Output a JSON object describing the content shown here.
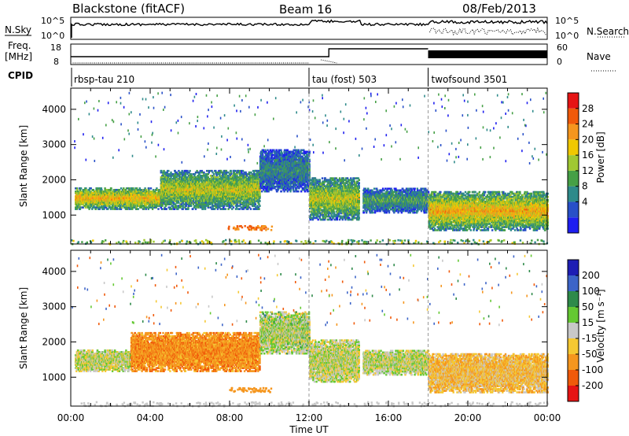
{
  "header": {
    "station": "Blackstone (fitACF)",
    "beam": "Beam 16",
    "date": "08/Feb/2013"
  },
  "noise_panel": {
    "left_label": "N.Sky",
    "left_ticks": [
      "10^5",
      "10^0"
    ],
    "right_ticks": [
      "10^5",
      "10^0"
    ],
    "right_label": "N.Search"
  },
  "freq_panel": {
    "left_label_1": "Freq.",
    "left_label_2": "[MHz]",
    "left_ticks": [
      "18",
      "8"
    ],
    "right_ticks": [
      "60",
      "0"
    ],
    "right_label": "Nave"
  },
  "cpid": {
    "label": "CPID",
    "segments": [
      {
        "name": "rbsp-tau 210",
        "start_h": 0
      },
      {
        "name": "tau (fost) 503",
        "start_h": 12
      },
      {
        "name": "twofsound 3501",
        "start_h": 18
      }
    ]
  },
  "power_panel": {
    "ylabel": "Slant Range [km]",
    "cbar_label": "Power [dB]",
    "cbar_ticks": [
      "28",
      "24",
      "20",
      "16",
      "12",
      "8",
      "4"
    ]
  },
  "velocity_panel": {
    "ylabel": "Slant Range [km]",
    "cbar_label": "Velocity [m s⁻¹]",
    "cbar_ticks": [
      "200",
      "100",
      "50",
      "15",
      "-15",
      "-50",
      "-100",
      "-200"
    ]
  },
  "colors": {
    "power": [
      "#1e1ef0",
      "#2850c8",
      "#2e8a8a",
      "#46a046",
      "#a0c832",
      "#f0c800",
      "#f5961e",
      "#f05a0a",
      "#e61414"
    ],
    "velocity": [
      "#e61414",
      "#f05a0a",
      "#f5961e",
      "#f5c832",
      "#c8c8c8",
      "#64c832",
      "#2e8a4a",
      "#3c64c8",
      "#1e1eb4"
    ]
  },
  "chart_data": [
    {
      "type": "heatmap",
      "title": "",
      "xlabel": "Time UT",
      "ylabel": "Slant Range [km]",
      "x_ticks": [
        "00:00",
        "04:00",
        "08:00",
        "12:00",
        "16:00",
        "20:00",
        "00:00"
      ],
      "y_ticks": [
        1000,
        2000,
        3000,
        4000
      ],
      "xlim_hours": [
        0,
        24
      ],
      "ylim_km": [
        180,
        4600
      ],
      "quantity": "Power [dB]",
      "clim": [
        0,
        32
      ],
      "echo_regions": [
        {
          "t0": 0.2,
          "t1": 4.5,
          "r0": 1200,
          "r1": 1800,
          "value": 22
        },
        {
          "t0": 4.5,
          "t1": 9.5,
          "r0": 1200,
          "r1": 2300,
          "value": 18
        },
        {
          "t0": 9.5,
          "t1": 12.0,
          "r0": 1700,
          "r1": 2900,
          "value": 10
        },
        {
          "t0": 12.0,
          "t1": 14.5,
          "r0": 900,
          "r1": 2100,
          "value": 18
        },
        {
          "t0": 14.7,
          "t1": 18.0,
          "r0": 1100,
          "r1": 1800,
          "value": 12
        },
        {
          "t0": 18.0,
          "t1": 24.0,
          "r0": 600,
          "r1": 1700,
          "value": 22
        }
      ]
    },
    {
      "type": "heatmap",
      "title": "",
      "xlabel": "Time UT",
      "ylabel": "Slant Range [km]",
      "x_ticks": [
        "00:00",
        "04:00",
        "08:00",
        "12:00",
        "16:00",
        "20:00",
        "00:00"
      ],
      "y_ticks": [
        1000,
        2000,
        3000,
        4000
      ],
      "xlim_hours": [
        0,
        24
      ],
      "ylim_km": [
        180,
        4600
      ],
      "quantity": "Velocity [m s-1]",
      "clim": [
        -250,
        250
      ],
      "echo_regions": [
        {
          "t0": 0.2,
          "t1": 3.0,
          "r0": 1200,
          "r1": 1800,
          "value": 0
        },
        {
          "t0": 3.0,
          "t1": 9.5,
          "r0": 1200,
          "r1": 2300,
          "value": -80
        },
        {
          "t0": 9.5,
          "t1": 12.0,
          "r0": 1700,
          "r1": 2900,
          "value": 10
        },
        {
          "t0": 12.0,
          "t1": 14.5,
          "r0": 900,
          "r1": 2100,
          "value": 0
        },
        {
          "t0": 14.7,
          "t1": 18.0,
          "r0": 1100,
          "r1": 1800,
          "value": 0
        },
        {
          "t0": 18.0,
          "t1": 24.0,
          "r0": 600,
          "r1": 1700,
          "value": -40
        }
      ]
    }
  ]
}
